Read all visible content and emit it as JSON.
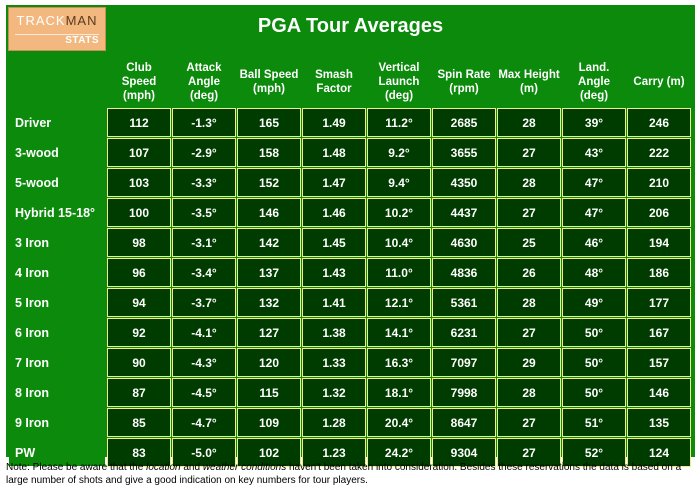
{
  "logo": {
    "part1": "TRACK",
    "part2": "MAN",
    "sub": "STATS"
  },
  "title": "PGA Tour Averages",
  "columns": [
    [
      "Club",
      "Speed",
      "(mph)"
    ],
    [
      "Attack",
      "Angle",
      "(deg)"
    ],
    [
      "Ball Speed",
      "(mph)"
    ],
    [
      "Smash",
      "Factor"
    ],
    [
      "Vertical",
      "Launch",
      "(deg)"
    ],
    [
      "Spin Rate",
      "(rpm)"
    ],
    [
      "Max Height",
      "(m)"
    ],
    [
      "Land.",
      "Angle",
      "(deg)"
    ],
    [
      "Carry (m)"
    ]
  ],
  "rows": [
    {
      "club": "Driver",
      "values": [
        "112",
        "-1.3°",
        "165",
        "1.49",
        "11.2°",
        "2685",
        "28",
        "39°",
        "246"
      ]
    },
    {
      "club": "3-wood",
      "values": [
        "107",
        "-2.9°",
        "158",
        "1.48",
        "9.2°",
        "3655",
        "27",
        "43°",
        "222"
      ]
    },
    {
      "club": "5-wood",
      "values": [
        "103",
        "-3.3°",
        "152",
        "1.47",
        "9.4°",
        "4350",
        "28",
        "47°",
        "210"
      ]
    },
    {
      "club": "Hybrid 15-18°",
      "values": [
        "100",
        "-3.5°",
        "146",
        "1.46",
        "10.2°",
        "4437",
        "27",
        "47°",
        "206"
      ]
    },
    {
      "club": "3 Iron",
      "values": [
        "98",
        "-3.1°",
        "142",
        "1.45",
        "10.4°",
        "4630",
        "25",
        "46°",
        "194"
      ]
    },
    {
      "club": "4 Iron",
      "values": [
        "96",
        "-3.4°",
        "137",
        "1.43",
        "11.0°",
        "4836",
        "26",
        "48°",
        "186"
      ]
    },
    {
      "club": "5 Iron",
      "values": [
        "94",
        "-3.7°",
        "132",
        "1.41",
        "12.1°",
        "5361",
        "28",
        "49°",
        "177"
      ]
    },
    {
      "club": "6 Iron",
      "values": [
        "92",
        "-4.1°",
        "127",
        "1.38",
        "14.1°",
        "6231",
        "27",
        "50°",
        "167"
      ]
    },
    {
      "club": "7 Iron",
      "values": [
        "90",
        "-4.3°",
        "120",
        "1.33",
        "16.3°",
        "7097",
        "29",
        "50°",
        "157"
      ]
    },
    {
      "club": "8 Iron",
      "values": [
        "87",
        "-4.5°",
        "115",
        "1.32",
        "18.1°",
        "7998",
        "28",
        "50°",
        "146"
      ]
    },
    {
      "club": "9 Iron",
      "values": [
        "85",
        "-4.7°",
        "109",
        "1.28",
        "20.4°",
        "8647",
        "27",
        "51°",
        "135"
      ]
    },
    {
      "club": "PW",
      "values": [
        "83",
        "-5.0°",
        "102",
        "1.23",
        "24.2°",
        "9304",
        "27",
        "52°",
        "124"
      ]
    }
  ],
  "note": {
    "prefix": "Note: Please be aware that the ",
    "em1": "location",
    "mid1": " and ",
    "em2": "weather conditions",
    "suffix": " haven't been taken into consideration. Besides these reservations the data is based on a large number of shots and give a good indication on key numbers for tour players."
  }
}
